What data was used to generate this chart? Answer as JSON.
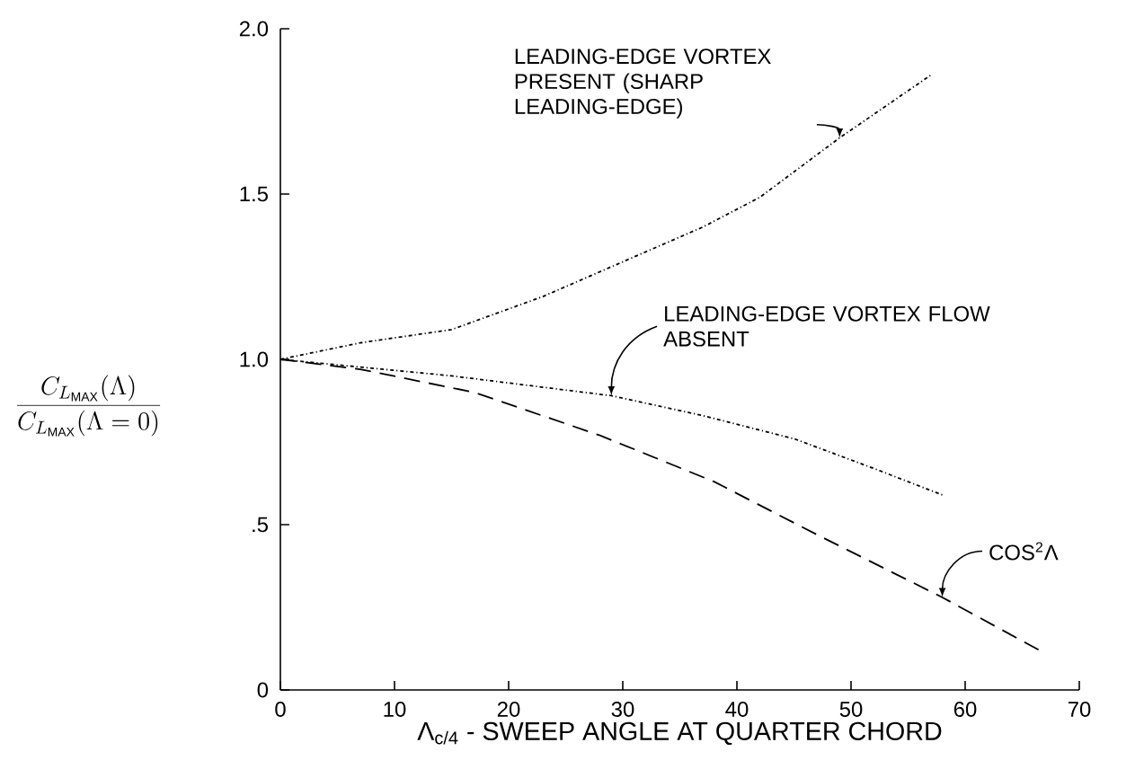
{
  "chart_data": {
    "type": "line",
    "xlabel": "Λ$_{c/4}$ - SWEEP ANGLE AT QUARTER CHORD",
    "ylabel": "\\frac{C_{L_{\\mathrm{MAX}}}(\\Lambda)}{C_{L_{\\mathrm{MAX}}}(\\Lambda=0)}",
    "xlim": [
      0,
      70
    ],
    "ylim": [
      0,
      2.0
    ],
    "xticks": [
      0,
      10,
      20,
      30,
      40,
      50,
      60,
      70
    ],
    "yticks": [
      0,
      {
        "value": 0.5,
        "label": ".5"
      },
      {
        "value": 1.0,
        "label": "1.0"
      },
      1.5,
      {
        "value": 2.0,
        "label": "2.0"
      }
    ],
    "series": [
      {
        "name": "LEADING-EDGE VORTEX PRESENT (SHARP LEADING-EDGE)",
        "color": "#000000",
        "line_style": "dotted",
        "x": [
          0,
          7,
          15,
          23,
          31,
          37,
          42,
          49,
          57
        ],
        "values": [
          1.0,
          1.05,
          1.09,
          1.19,
          1.31,
          1.4,
          1.49,
          1.67,
          1.86
        ]
      },
      {
        "name": "LEADING-EDGE VORTEX FLOW ABSENT",
        "color": "#000000",
        "line_style": "dotted",
        "x": [
          0,
          15,
          29,
          37,
          45,
          52,
          58
        ],
        "values": [
          1.0,
          0.95,
          0.89,
          0.83,
          0.76,
          0.67,
          0.59
        ]
      },
      {
        "name": "COS$^{2}$Λ",
        "color": "#000000",
        "line_style": "dashed",
        "x": [
          0,
          7,
          17,
          28,
          38,
          47,
          58,
          66.5
        ],
        "values": [
          1.0,
          0.97,
          0.9,
          0.77,
          0.63,
          0.47,
          0.28,
          0.12
        ]
      }
    ]
  }
}
